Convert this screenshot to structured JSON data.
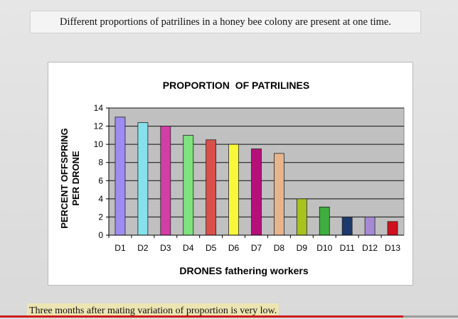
{
  "slide": {
    "top_caption": "Different proportions of patrilines in a honey bee colony are present at one time.",
    "bottom_caption": "Three months after mating variation of proportion is very low.",
    "progress_fraction": 0.88
  },
  "chart_data": {
    "type": "bar",
    "title": "PROPORTION  OF PATRILINES",
    "xlabel": "DRONES fathering workers",
    "ylabel_lines": [
      "PERCENT OFFSPRING",
      "PER DRONE"
    ],
    "categories": [
      "D1",
      "D2",
      "D3",
      "D4",
      "D5",
      "D6",
      "D7",
      "D8",
      "D9",
      "D10",
      "D11",
      "D12",
      "D13"
    ],
    "values": [
      13,
      12.4,
      12,
      11,
      10.5,
      10,
      9.5,
      9,
      4,
      3.1,
      2,
      2,
      1.5
    ],
    "colors": [
      "#9f8cf0",
      "#86e1ec",
      "#d23ea6",
      "#7fe27f",
      "#d9504a",
      "#f8f83a",
      "#b5107a",
      "#e8b48c",
      "#a8c21e",
      "#3fae3f",
      "#1c3a6b",
      "#a58ad3",
      "#d0101c"
    ],
    "ylim": [
      0,
      14
    ],
    "yticks": [
      0,
      2,
      4,
      6,
      8,
      10,
      12,
      14
    ],
    "grid": true
  }
}
